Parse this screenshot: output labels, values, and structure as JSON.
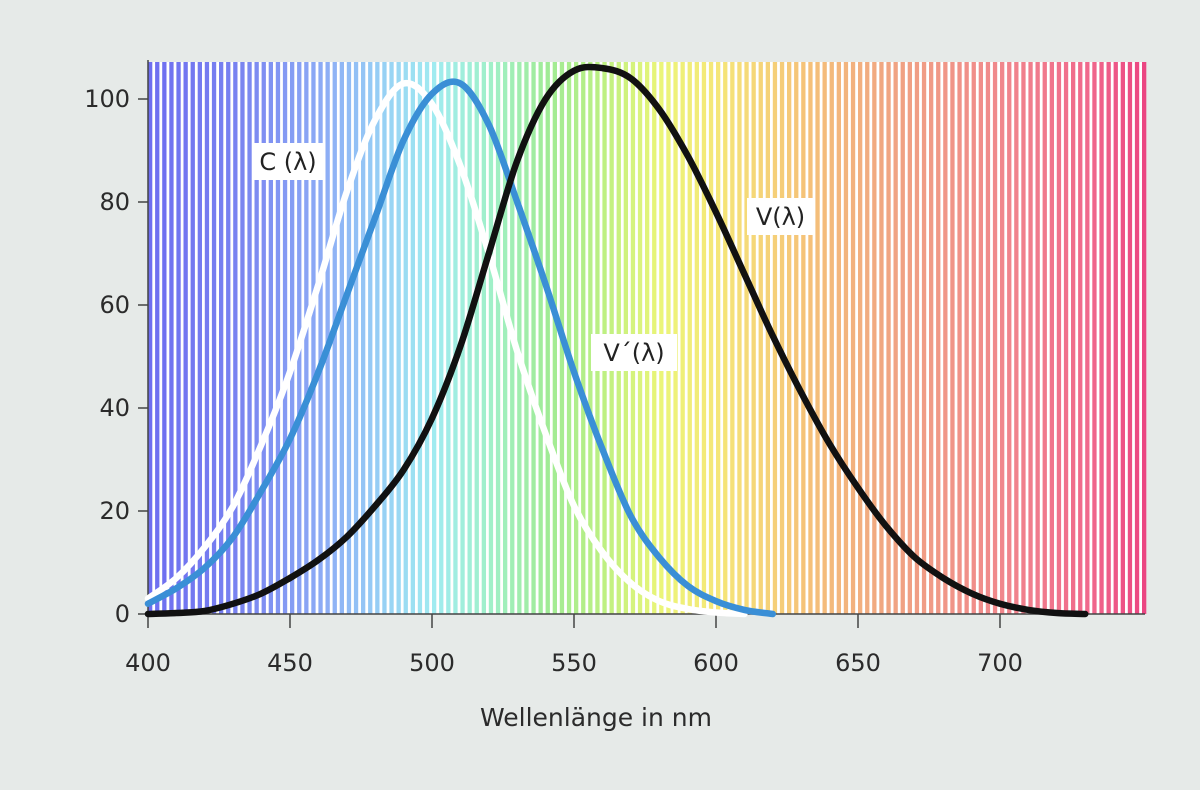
{
  "chart_data": {
    "type": "line",
    "xlabel": "Wellenlänge in nm",
    "ylabel": "",
    "xlim": [
      400,
      750
    ],
    "ylim": [
      0,
      107
    ],
    "x_ticks": [
      400,
      450,
      500,
      550,
      600,
      650,
      700
    ],
    "y_ticks": [
      0,
      20,
      40,
      60,
      80,
      100
    ],
    "grid": false,
    "background": "visible-spectrum stripes from violet (400 nm) to red (750 nm)",
    "series": [
      {
        "name": "C (λ)",
        "color": "#ffffff",
        "x": [
          400,
          410,
          420,
          430,
          440,
          450,
          460,
          470,
          480,
          490,
          500,
          510,
          520,
          530,
          540,
          550,
          560,
          570,
          580,
          590,
          600,
          610
        ],
        "y": [
          3,
          7,
          13,
          21,
          33,
          47,
          64,
          82,
          96,
          103,
          99,
          87,
          70,
          51,
          35,
          21,
          12,
          6,
          2.5,
          1,
          0.3,
          0
        ]
      },
      {
        "name": "V´(λ)",
        "color": "#3a8fd6",
        "x": [
          400,
          410,
          420,
          430,
          440,
          450,
          460,
          470,
          480,
          490,
          500,
          510,
          520,
          530,
          540,
          550,
          560,
          570,
          580,
          590,
          600,
          610,
          620
        ],
        "y": [
          2,
          5,
          9,
          15,
          24,
          34,
          47,
          62,
          77,
          92,
          101,
          103,
          95,
          80,
          64,
          47,
          32,
          19,
          11,
          5.5,
          2.5,
          0.8,
          0
        ]
      },
      {
        "name": "V(λ)",
        "color": "#111111",
        "x": [
          400,
          410,
          420,
          430,
          440,
          450,
          460,
          470,
          480,
          490,
          500,
          510,
          520,
          530,
          540,
          550,
          560,
          570,
          580,
          590,
          600,
          610,
          620,
          630,
          640,
          650,
          660,
          670,
          680,
          690,
          700,
          710,
          720,
          730
        ],
        "y": [
          0,
          0.2,
          0.6,
          2,
          4,
          7,
          10.5,
          15,
          21,
          28,
          38,
          52,
          70,
          88,
          100,
          105.5,
          106,
          104,
          98,
          89,
          78,
          66,
          54,
          43,
          33,
          24.5,
          17,
          11,
          7,
          4,
          2,
          0.8,
          0.2,
          0
        ]
      }
    ],
    "annotations": [
      {
        "text": "C (λ)",
        "series": "C (λ)"
      },
      {
        "text": "V´(λ)",
        "series": "V´(λ)"
      },
      {
        "text": "V(λ)",
        "series": "V(λ)"
      }
    ]
  }
}
